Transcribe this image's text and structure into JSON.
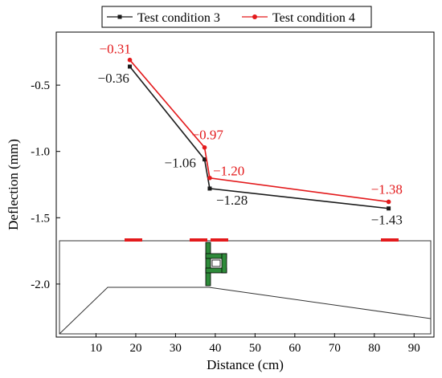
{
  "chart_data": {
    "type": "line",
    "title": "",
    "xlabel": "Distance (cm)",
    "ylabel": "Deflection (mm)",
    "xlim": [
      0,
      95
    ],
    "ylim": [
      -2.4,
      -0.1
    ],
    "xticks": [
      10,
      20,
      30,
      40,
      50,
      60,
      70,
      80,
      90
    ],
    "yticks": [
      -0.5,
      -1.0,
      -1.5,
      -2.0
    ],
    "ytick_labels": [
      "-0.5",
      "-1.0",
      "-1.5",
      "-2.0"
    ],
    "legend_position": "top",
    "series": [
      {
        "name": "Test condition 3",
        "color": "#1a1a1a",
        "marker": "square",
        "x": [
          18.5,
          37.3,
          38.6,
          83.6
        ],
        "y": [
          -0.36,
          -1.06,
          -1.28,
          -1.43
        ],
        "labels": [
          "−0.36",
          "−1.06",
          "−1.28",
          "−1.43"
        ]
      },
      {
        "name": "Test condition 4",
        "color": "#e31a1c",
        "marker": "circle",
        "x": [
          18.5,
          37.3,
          38.6,
          83.6
        ],
        "y": [
          -0.31,
          -0.97,
          -1.2,
          -1.38
        ],
        "labels": [
          "−0.31",
          "−0.97",
          "−1.20",
          "−1.38"
        ]
      }
    ],
    "loading_color": "#e31a1c",
    "joint_color": "#2e8b3a"
  }
}
